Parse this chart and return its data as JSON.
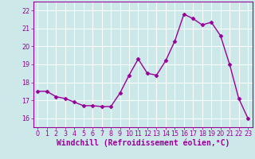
{
  "x": [
    0,
    1,
    2,
    3,
    4,
    5,
    6,
    7,
    8,
    9,
    10,
    11,
    12,
    13,
    14,
    15,
    16,
    17,
    18,
    19,
    20,
    21,
    22,
    23
  ],
  "y": [
    17.5,
    17.5,
    17.2,
    17.1,
    16.9,
    16.7,
    16.7,
    16.65,
    16.65,
    17.4,
    18.4,
    19.3,
    18.5,
    18.4,
    19.2,
    20.3,
    21.8,
    21.55,
    21.2,
    21.35,
    20.6,
    19.0,
    17.1,
    16.0
  ],
  "line_color": "#990099",
  "marker": "D",
  "marker_size": 2.5,
  "linewidth": 1.0,
  "background_color": "#cce8e8",
  "grid_color": "#ffffff",
  "xlabel": "Windchill (Refroidissement éolien,°C)",
  "xlabel_color": "#990099",
  "ylim": [
    15.5,
    22.5
  ],
  "xlim": [
    -0.5,
    23.5
  ],
  "yticks": [
    16,
    17,
    18,
    19,
    20,
    21,
    22
  ],
  "xticks": [
    0,
    1,
    2,
    3,
    4,
    5,
    6,
    7,
    8,
    9,
    10,
    11,
    12,
    13,
    14,
    15,
    16,
    17,
    18,
    19,
    20,
    21,
    22,
    23
  ],
  "tick_color": "#990099",
  "tick_labelsize": 5.8,
  "xlabel_fontsize": 7.0,
  "spine_color": "#990099"
}
